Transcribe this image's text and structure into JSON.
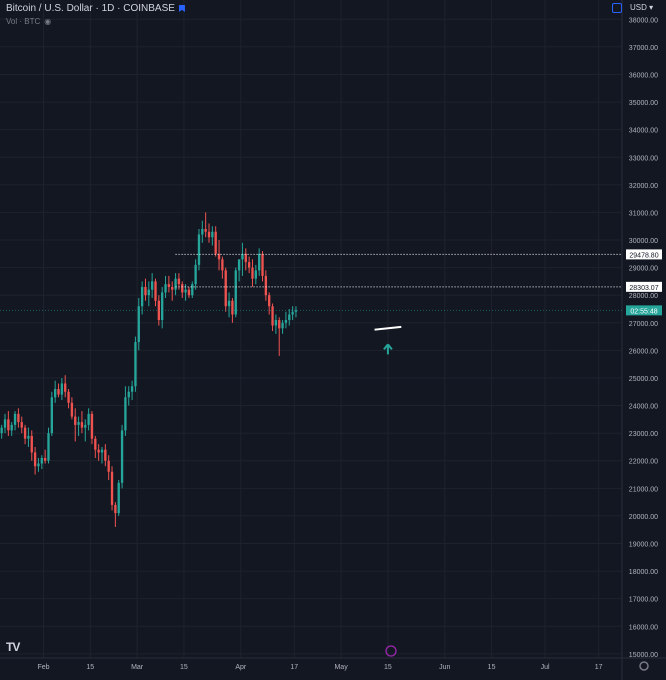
{
  "header": {
    "symbol_title": "Bitcoin / U.S. Dollar · 1D · COINBASE",
    "volume_label": "Vol · BTC",
    "currency": "USD"
  },
  "logo_text": "TV",
  "chart_data": {
    "type": "candlestick",
    "title": "Bitcoin / U.S. Dollar · 1D · COINBASE",
    "ylim": [
      14850,
      38700
    ],
    "y_ticks": [
      15000,
      16000,
      17000,
      18000,
      19000,
      20000,
      21000,
      22000,
      23000,
      24000,
      25000,
      26000,
      27000,
      28000,
      29000,
      30000,
      31000,
      32000,
      33000,
      34000,
      35000,
      36000,
      37000,
      38000
    ],
    "y_tick_labels": [
      "15000.00",
      "16000.00",
      "17000.00",
      "18000.00",
      "19000.00",
      "20000.00",
      "21000.00",
      "22000.00",
      "23000.00",
      "24000.00",
      "25000.00",
      "26000.00",
      "27000.00",
      "28000.00",
      "29000.00",
      "30000.00",
      "31000.00",
      "32000.00",
      "33000.00",
      "34000.00",
      "35000.00",
      "36000.00",
      "37000.00",
      "38000.00"
    ],
    "x_start_date": "2023-01-19",
    "x_end_date": "2023-07-24",
    "x_ticks": [
      {
        "date": "2023-02-01",
        "label": "Feb"
      },
      {
        "date": "2023-02-15",
        "label": "15"
      },
      {
        "date": "2023-03-01",
        "label": "Mar"
      },
      {
        "date": "2023-03-15",
        "label": "15"
      },
      {
        "date": "2023-04-01",
        "label": "Apr"
      },
      {
        "date": "2023-04-17",
        "label": "17"
      },
      {
        "date": "2023-05-01",
        "label": "May"
      },
      {
        "date": "2023-05-15",
        "label": "15"
      },
      {
        "date": "2023-06-01",
        "label": "Jun"
      },
      {
        "date": "2023-06-15",
        "label": "15"
      },
      {
        "date": "2023-07-01",
        "label": "Jul"
      },
      {
        "date": "2023-07-17",
        "label": "17"
      }
    ],
    "ohlc": [
      [
        23000,
        23300,
        22800,
        23200
      ],
      [
        23200,
        23700,
        23000,
        23500
      ],
      [
        23500,
        23800,
        22900,
        23100
      ],
      [
        23100,
        23400,
        22900,
        23300
      ],
      [
        23300,
        23800,
        23100,
        23700
      ],
      [
        23700,
        23900,
        23200,
        23400
      ],
      [
        23400,
        23600,
        23000,
        23200
      ],
      [
        23200,
        23300,
        22600,
        22800
      ],
      [
        22800,
        23200,
        22500,
        22900
      ],
      [
        22900,
        23100,
        22000,
        22300
      ],
      [
        22300,
        22500,
        21500,
        21800
      ],
      [
        21800,
        22100,
        21600,
        21900
      ],
      [
        21900,
        22200,
        21700,
        22100
      ],
      [
        22100,
        22400,
        21900,
        22000
      ],
      [
        22000,
        23200,
        21900,
        23000
      ],
      [
        23000,
        24500,
        22900,
        24300
      ],
      [
        24300,
        24900,
        24100,
        24600
      ],
      [
        24600,
        24800,
        24300,
        24400
      ],
      [
        24400,
        25000,
        24200,
        24800
      ],
      [
        24800,
        25100,
        24300,
        24500
      ],
      [
        24500,
        24600,
        23900,
        24100
      ],
      [
        24100,
        24300,
        23500,
        23600
      ],
      [
        23600,
        23900,
        22700,
        23300
      ],
      [
        23300,
        23600,
        22900,
        23400
      ],
      [
        23400,
        23800,
        23000,
        23200
      ],
      [
        23200,
        23500,
        22700,
        23300
      ],
      [
        23300,
        23900,
        23100,
        23700
      ],
      [
        23700,
        23800,
        22600,
        22800
      ],
      [
        22800,
        22900,
        22100,
        22400
      ],
      [
        22400,
        22600,
        22000,
        22300
      ],
      [
        22300,
        22500,
        21900,
        22400
      ],
      [
        22400,
        22600,
        21800,
        22000
      ],
      [
        22000,
        22200,
        21300,
        21600
      ],
      [
        21600,
        21800,
        20200,
        20400
      ],
      [
        20400,
        20500,
        19600,
        20100
      ],
      [
        20100,
        21300,
        20000,
        21200
      ],
      [
        21200,
        23300,
        21000,
        23100
      ],
      [
        23100,
        24700,
        22900,
        24300
      ],
      [
        24300,
        24700,
        24000,
        24500
      ],
      [
        24500,
        24900,
        24200,
        24700
      ],
      [
        24700,
        26500,
        24500,
        26300
      ],
      [
        26300,
        27900,
        26000,
        27600
      ],
      [
        27600,
        28500,
        27300,
        28300
      ],
      [
        28300,
        28600,
        27800,
        28000
      ],
      [
        28000,
        28500,
        27600,
        28200
      ],
      [
        28200,
        28800,
        27900,
        28500
      ],
      [
        28500,
        28600,
        27600,
        27800
      ],
      [
        27800,
        28000,
        26900,
        27100
      ],
      [
        27100,
        28300,
        26800,
        28100
      ],
      [
        28100,
        28700,
        27900,
        28400
      ],
      [
        28400,
        28700,
        28100,
        28300
      ],
      [
        28300,
        28500,
        27800,
        28200
      ],
      [
        28200,
        28800,
        28000,
        28600
      ],
      [
        28600,
        28800,
        28200,
        28400
      ],
      [
        28400,
        28500,
        27900,
        28100
      ],
      [
        28100,
        28400,
        27800,
        28200
      ],
      [
        28200,
        28300,
        27900,
        28000
      ],
      [
        28000,
        28500,
        27900,
        28400
      ],
      [
        28400,
        29300,
        28200,
        29100
      ],
      [
        29100,
        30400,
        28900,
        30200
      ],
      [
        30200,
        30700,
        29900,
        30400
      ],
      [
        30400,
        31000,
        30100,
        30300
      ],
      [
        30300,
        30600,
        29900,
        30100
      ],
      [
        30100,
        30500,
        29800,
        30300
      ],
      [
        30300,
        30500,
        29400,
        29500
      ],
      [
        29500,
        30000,
        28900,
        29300
      ],
      [
        29300,
        29400,
        28600,
        28900
      ],
      [
        28900,
        29000,
        27400,
        27600
      ],
      [
        27600,
        28100,
        27200,
        27800
      ],
      [
        27800,
        27900,
        27000,
        27300
      ],
      [
        27300,
        29000,
        27200,
        28900
      ],
      [
        28900,
        29200,
        28500,
        29300
      ],
      [
        29300,
        29900,
        28700,
        29500
      ],
      [
        29500,
        29700,
        28900,
        29200
      ],
      [
        29200,
        29400,
        28800,
        29000
      ],
      [
        29000,
        29300,
        28300,
        28600
      ],
      [
        28600,
        29100,
        28400,
        28900
      ],
      [
        28900,
        29700,
        28700,
        29500
      ],
      [
        29500,
        29600,
        28500,
        28700
      ],
      [
        28700,
        28900,
        27800,
        28000
      ],
      [
        28000,
        28100,
        27300,
        27600
      ],
      [
        27600,
        27700,
        26700,
        26900
      ],
      [
        26900,
        27300,
        26600,
        27100
      ],
      [
        27100,
        27200,
        25800,
        26800
      ],
      [
        26800,
        27100,
        26600,
        27000
      ],
      [
        27000,
        27400,
        26800,
        27100
      ],
      [
        27100,
        27500,
        26900,
        27300
      ],
      [
        27300,
        27600,
        27100,
        27400
      ],
      [
        27400,
        27600,
        27200,
        27450
      ]
    ],
    "horizontal_levels": [
      {
        "value": 29478.8,
        "label": "29478.80",
        "style": "dotted",
        "color": "#ffffff"
      },
      {
        "value": 28303.07,
        "label": "28303.07",
        "style": "dotted",
        "color": "#ffffff"
      }
    ],
    "current_price": {
      "value": 27450,
      "label": "02:55:48",
      "color": "#26a69a"
    },
    "support_line": {
      "start_date": "2023-05-11",
      "start_value": 26750,
      "end_date": "2023-05-19",
      "end_value": 26850,
      "color": "#ffffff"
    },
    "up_arrow": {
      "date": "2023-05-15",
      "value": 26000,
      "color": "#26a69a"
    },
    "grid": true,
    "colors": {
      "up": "#26a69a",
      "down": "#ef5350",
      "background": "#131722",
      "grid": "#1e222d"
    }
  }
}
